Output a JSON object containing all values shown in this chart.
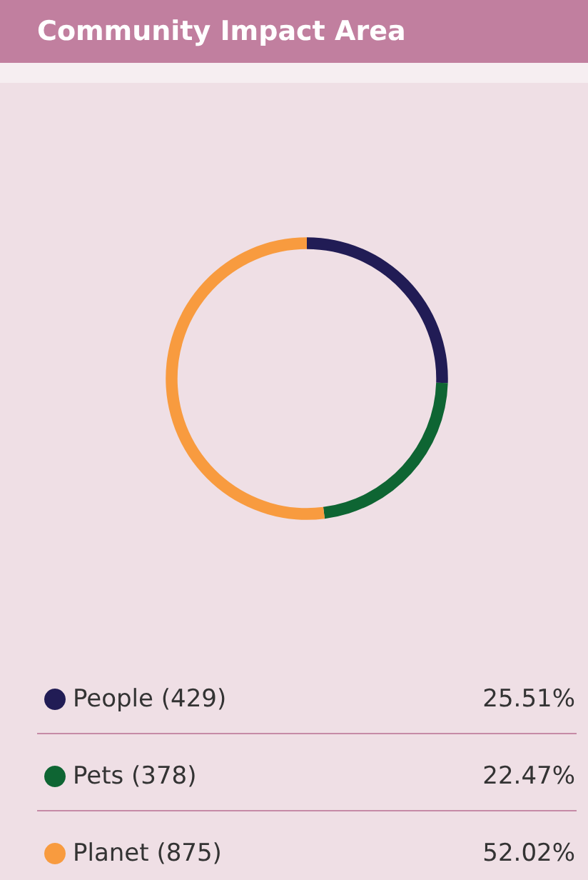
{
  "chart_data": {
    "type": "donut",
    "title": "Community Impact Area",
    "categories": [
      "People (429)",
      "Pets (378)",
      "Planet (875)"
    ],
    "values": [
      25.51,
      22.47,
      52.02
    ],
    "colors": [
      "#211c55",
      "#0e6533",
      "#f89b3f"
    ],
    "value_labels": [
      "25.51%",
      "22.47%",
      "52.02%"
    ],
    "legend": "bottom"
  }
}
